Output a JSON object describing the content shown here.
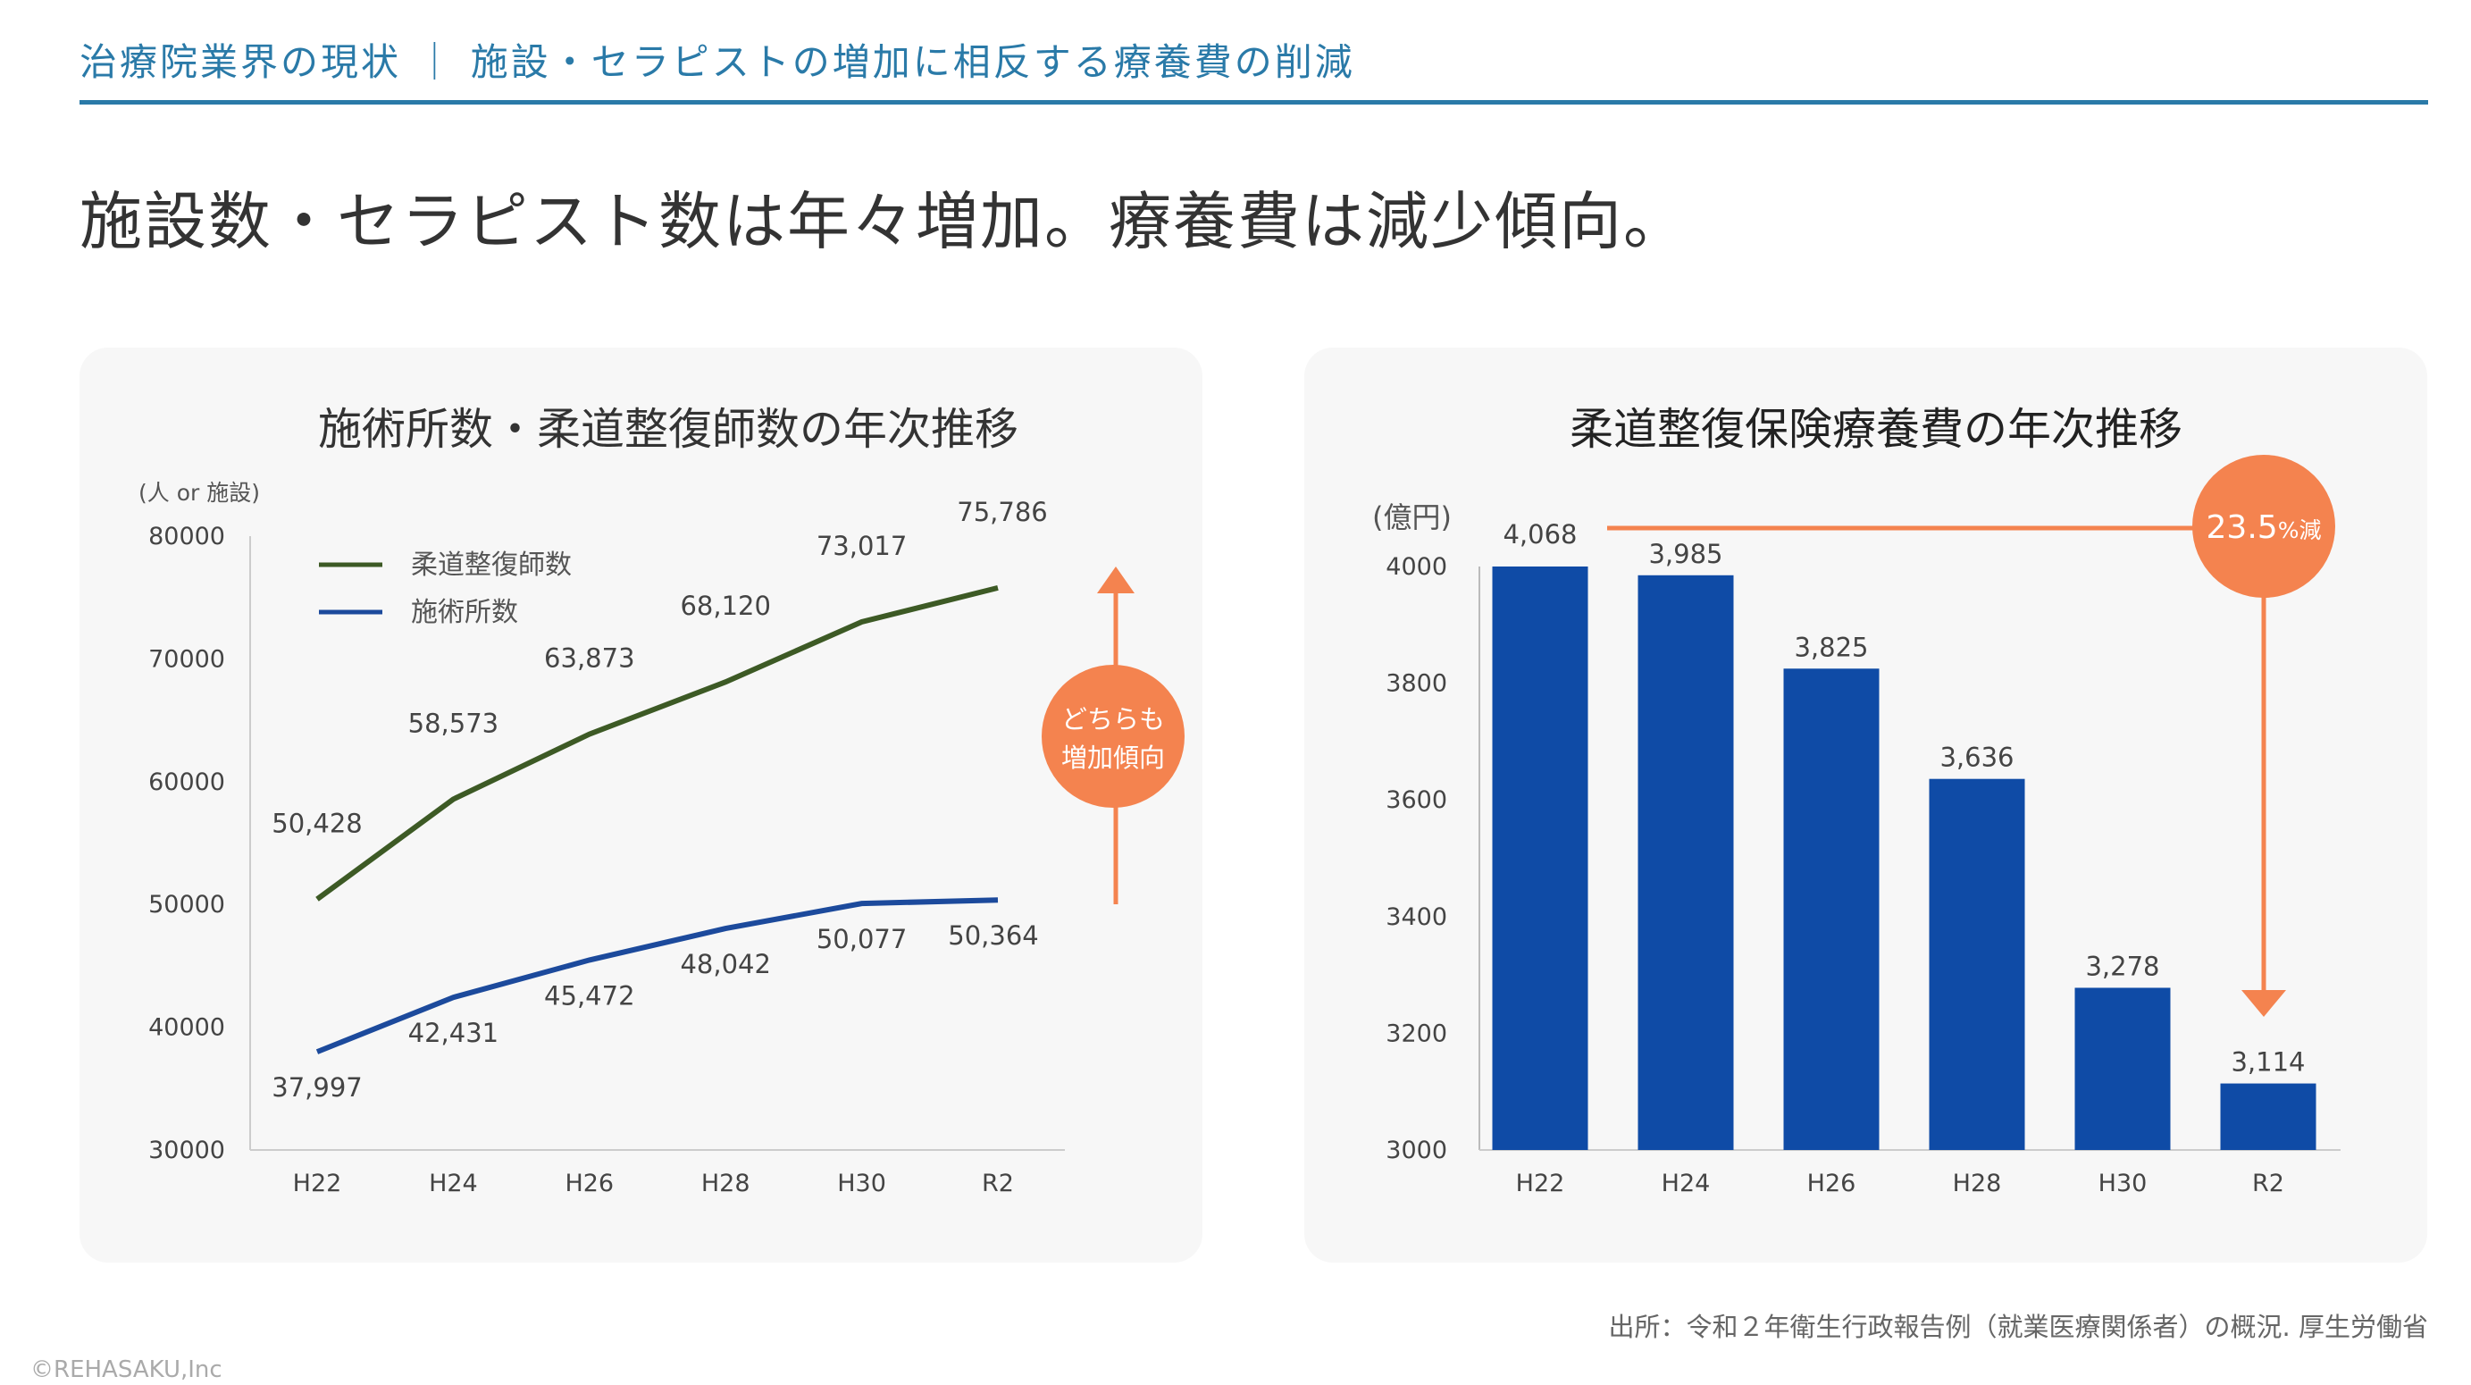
{
  "header": {
    "section": "治療院業界の現状",
    "separator": "｜",
    "subtitle": "施設・セラピストの増加に相反する療養費の削減"
  },
  "title": "施設数・セラピスト数は年々増加。療養費は減少傾向。",
  "source": "出所：令和２年衛生行政報告例（就業医療関係者）の概況. 厚生労働省",
  "copyright": "©REHASAKU,Inc",
  "colors": {
    "accent": "#2a7aa8",
    "green_line": "#3d5a25",
    "blue_line": "#1c4a9c",
    "bar": "#0f4ba6",
    "orange": "#f4834f"
  },
  "chart_data": [
    {
      "type": "line",
      "title": "施術所数・柔道整復師数の年次推移",
      "ylabel": "(人 or 施設)",
      "categories": [
        "H22",
        "H24",
        "H26",
        "H28",
        "H30",
        "R2"
      ],
      "ylim": [
        30000,
        80000
      ],
      "yticks": [
        "30000",
        "40000",
        "50000",
        "60000",
        "70000",
        "80000"
      ],
      "legend_position": "top-left",
      "series": [
        {
          "name": "柔道整復師数",
          "values": [
            50428,
            58573,
            63873,
            68120,
            73017,
            75786
          ],
          "labels": [
            "50,428",
            "58,573",
            "63,873",
            "68,120",
            "73,017",
            "75,786"
          ]
        },
        {
          "name": "施術所数",
          "values": [
            37997,
            42431,
            45472,
            48042,
            50077,
            50364
          ],
          "labels": [
            "37,997",
            "42,431",
            "45,472",
            "48,042",
            "50,077",
            "50,364"
          ]
        }
      ],
      "annotation": {
        "line1": "どちらも",
        "line2": "増加傾向"
      }
    },
    {
      "type": "bar",
      "title": "柔道整復保険療養費の年次推移",
      "ylabel": "(億円)",
      "categories": [
        "H22",
        "H24",
        "H26",
        "H28",
        "H30",
        "R2"
      ],
      "ylim": [
        3000,
        4000
      ],
      "yticks": [
        "3000",
        "3200",
        "3400",
        "3600",
        "3800",
        "4000"
      ],
      "values": [
        4068,
        3985,
        3825,
        3636,
        3278,
        3114
      ],
      "labels": [
        "4,068",
        "3,985",
        "3,825",
        "3,636",
        "3,278",
        "3,114"
      ],
      "annotation": {
        "value": "23.5",
        "unit": "%減"
      }
    }
  ]
}
